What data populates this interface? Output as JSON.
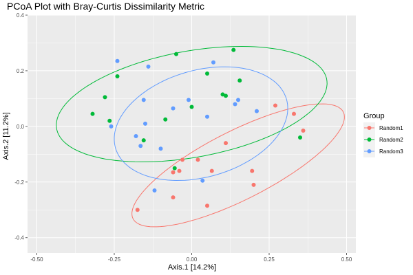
{
  "chart_data": {
    "type": "scatter",
    "title": "PCoA Plot with Bray-Curtis Dissimilarity Metric",
    "xlabel": "Axis.1   [14.2%]",
    "ylabel": "Axis.2   [11.2%]",
    "xlim": [
      -0.53,
      0.53
    ],
    "ylim": [
      -0.455,
      0.4
    ],
    "xticks": [
      -0.5,
      -0.25,
      0.0,
      0.25,
      0.5
    ],
    "xtick_labels": [
      "-0.50",
      "-0.25",
      "0.00",
      "0.25",
      "0.50"
    ],
    "yticks": [
      -0.4,
      -0.2,
      0.0,
      0.2,
      0.4
    ],
    "ytick_labels": [
      "-0.4",
      "-0.2",
      "0.0",
      "0.2",
      "0.4"
    ],
    "grid": true,
    "legend": {
      "title": "Group",
      "position": "right"
    },
    "series": [
      {
        "name": "Random1",
        "color": "#F8766D",
        "points": [
          [
            0.27,
            0.075
          ],
          [
            0.33,
            0.045
          ],
          [
            0.36,
            -0.015
          ],
          [
            0.11,
            -0.06
          ],
          [
            -0.03,
            -0.12
          ],
          [
            0.02,
            -0.12
          ],
          [
            -0.06,
            -0.165
          ],
          [
            -0.04,
            -0.16
          ],
          [
            0.065,
            -0.16
          ],
          [
            0.195,
            -0.16
          ],
          [
            0.2,
            -0.21
          ],
          [
            -0.06,
            -0.255
          ],
          [
            0.05,
            -0.285
          ],
          [
            -0.175,
            -0.3
          ]
        ],
        "ellipse": {
          "center": [
            0.15,
            -0.14
          ],
          "semi_axes": [
            0.39,
            0.12
          ],
          "angle_deg": 30
        }
      },
      {
        "name": "Random2",
        "color": "#00BA38",
        "points": [
          [
            -0.32,
            0.045
          ],
          [
            -0.28,
            0.105
          ],
          [
            -0.24,
            0.18
          ],
          [
            -0.05,
            0.26
          ],
          [
            0.135,
            0.275
          ],
          [
            0.05,
            0.19
          ],
          [
            0.155,
            0.165
          ],
          [
            0.1,
            0.115
          ],
          [
            0.11,
            0.11
          ],
          [
            0.0,
            0.07
          ],
          [
            -0.265,
            0.02
          ],
          [
            -0.085,
            0.025
          ],
          [
            -0.155,
            -0.05
          ],
          [
            -0.055,
            -0.15
          ],
          [
            0.35,
            -0.04
          ]
        ],
        "ellipse": {
          "center": [
            0.0,
            0.08
          ],
          "semi_axes": [
            0.445,
            0.19
          ],
          "angle_deg": 12
        }
      },
      {
        "name": "Random3",
        "color": "#619CFF",
        "points": [
          [
            -0.24,
            0.235
          ],
          [
            -0.14,
            0.215
          ],
          [
            0.07,
            0.23
          ],
          [
            -0.155,
            0.095
          ],
          [
            -0.06,
            0.065
          ],
          [
            -0.01,
            0.095
          ],
          [
            0.15,
            0.095
          ],
          [
            0.14,
            0.08
          ],
          [
            0.21,
            0.055
          ],
          [
            0.05,
            0.035
          ],
          [
            -0.26,
            0.0
          ],
          [
            -0.15,
            0.01
          ],
          [
            -0.18,
            -0.035
          ],
          [
            -0.165,
            -0.07
          ],
          [
            -0.1,
            -0.08
          ],
          [
            0.035,
            -0.195
          ],
          [
            -0.12,
            -0.23
          ]
        ],
        "ellipse": {
          "center": [
            0.03,
            0.01
          ],
          "semi_axes": [
            0.29,
            0.19
          ],
          "angle_deg": 20
        }
      }
    ]
  }
}
